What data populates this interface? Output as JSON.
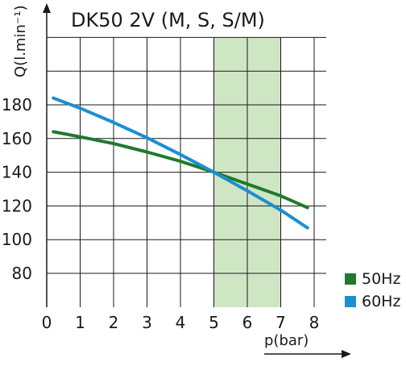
{
  "chart_data": {
    "type": "line",
    "title": "DK50 2V (M, S, S/M)",
    "xlabel": "p(bar)",
    "ylabel": "Q(l.min⁻¹)",
    "xlim": [
      0,
      8
    ],
    "ylim": [
      60,
      200
    ],
    "x_ticks": [
      0,
      1,
      2,
      3,
      4,
      5,
      6,
      7,
      8
    ],
    "y_ticks": [
      80,
      100,
      120,
      140,
      160,
      180
    ],
    "grid": true,
    "highlight_band": {
      "x_from": 5,
      "x_to": 7,
      "color": "#cfe6c4"
    },
    "legend_position": "bottom-right",
    "series": [
      {
        "name": "50Hz",
        "color": "#1f7a2e",
        "x": [
          0.2,
          1,
          2,
          3,
          4,
          5,
          6,
          7,
          7.8
        ],
        "y": [
          164,
          161,
          157,
          152,
          146.5,
          140,
          133,
          126,
          119
        ]
      },
      {
        "name": "60Hz",
        "color": "#1b8fd2",
        "x": [
          0.2,
          1,
          2,
          3,
          4,
          5,
          6,
          7,
          7.8
        ],
        "y": [
          184,
          178,
          169.5,
          160.5,
          150.5,
          140,
          129,
          117.5,
          107
        ]
      }
    ]
  }
}
